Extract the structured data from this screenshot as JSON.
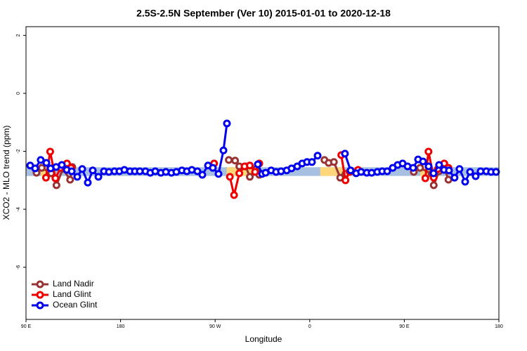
{
  "chart_data": {
    "type": "line",
    "title": "2.5S-2.5N September (Ver 10)   2015-01-01 to 2020-12-18",
    "x_label": "Longitude",
    "y_label": "XCO2 - MLO trend (ppm)",
    "xlim": [
      90,
      540
    ],
    "ylim": [
      -7.8,
      2.3
    ],
    "xticks": [
      {
        "value": 90,
        "label": "90 E"
      },
      180,
      {
        "value": 270,
        "label": "90 W"
      },
      {
        "value": 360,
        "label": "0"
      },
      {
        "value": 450,
        "label": "90 E"
      },
      {
        "value": 540,
        "label": "180"
      }
    ],
    "yticks": [
      2,
      0,
      -2,
      -4,
      -6
    ],
    "legend": "bottom-left",
    "band": {
      "ylim": [
        -2.85,
        -2.55
      ],
      "color": "#a7bfe0",
      "land_color": "#ffd77a",
      "land_segments": [
        [
          104,
          115
        ],
        [
          281,
          306
        ],
        [
          370,
          393
        ],
        [
          465,
          475
        ]
      ]
    },
    "series": [
      {
        "name": "Land Nadir",
        "color": "#993333",
        "x": [
          100,
          105,
          114,
          119,
          125,
          132,
          134,
          null,
          283,
          289,
          293,
          299,
          303,
          309,
          312,
          null,
          374,
          378,
          383,
          389,
          394,
          399,
          null,
          459,
          465,
          476,
          478,
          483,
          488,
          492
        ],
        "values": [
          -2.74,
          -2.57,
          -2.76,
          -3.17,
          -2.61,
          -2.98,
          -2.54,
          null,
          -2.3,
          -2.32,
          -2.52,
          -2.52,
          -2.88,
          -2.61,
          -2.81,
          null,
          -2.3,
          -2.4,
          -2.37,
          -2.91,
          -2.78,
          -2.69,
          null,
          -2.71,
          -2.57,
          -2.78,
          -3.17,
          -2.69,
          -2.57,
          -2.98
        ]
      },
      {
        "name": "Land Glint",
        "color": "#ee0000",
        "x": [
          109,
          113,
          118,
          123,
          129,
          133,
          null,
          269,
          null,
          284,
          288,
          293,
          298,
          303,
          308,
          312,
          null,
          390,
          394,
          398,
          406,
          null,
          470,
          473,
          478,
          482,
          488,
          492
        ],
        "values": [
          -2.91,
          -2.01,
          -2.93,
          -2.57,
          -2.42,
          -2.57,
          null,
          -2.42,
          null,
          -2.88,
          -3.51,
          -2.76,
          -2.52,
          -2.49,
          -2.71,
          -2.42,
          null,
          -2.13,
          -3.0,
          -2.71,
          -2.64,
          null,
          -2.93,
          -2.01,
          -2.91,
          -2.61,
          -2.42,
          -2.57
        ]
      },
      {
        "name": "Ocean Glint",
        "color": "#0000ee",
        "x": [
          94,
          98.7,
          104,
          109.4,
          113.4,
          118.7,
          124.1,
          128.8,
          133.5,
          138.8,
          143.5,
          148.8,
          153.5,
          158.9,
          164.2,
          168.9,
          174.2,
          178.9,
          183.6,
          189,
          193.6,
          198.3,
          203.7,
          208.3,
          213,
          218.4,
          223.1,
          228.4,
          233.1,
          238.4,
          243.1,
          247.8,
          253.1,
          257.8,
          263.2,
          267.8,
          273.2,
          277.9,
          281.2,
          null,
          310.6,
          314.7,
          318,
          323.3,
          328,
          332.7,
          338.1,
          342.7,
          348.1,
          352.8,
          357.4,
          362.1,
          367.5,
          null,
          393.5,
          398.9,
          404.2,
          408.9,
          414.3,
          418.9,
          424.3,
          429,
          433.7,
          439,
          443.7,
          448.4,
          453.1,
          458.4,
          463.1,
          467.8,
          473.1,
          477.8,
          483.1,
          487.8,
          492.5,
          497.8,
          502.5,
          507.9,
          512.6,
          517.9,
          522.6,
          528,
          532.6,
          537.3
        ],
        "values": [
          -2.49,
          -2.59,
          -2.3,
          -2.4,
          -2.59,
          -2.54,
          -2.47,
          -2.64,
          -2.69,
          -2.88,
          -2.61,
          -3.08,
          -2.66,
          -2.88,
          -2.69,
          -2.71,
          -2.69,
          -2.69,
          -2.64,
          -2.69,
          -2.69,
          -2.69,
          -2.69,
          -2.74,
          -2.69,
          -2.74,
          -2.71,
          -2.74,
          -2.71,
          -2.66,
          -2.69,
          -2.64,
          -2.69,
          -2.81,
          -2.49,
          -2.57,
          -2.78,
          -1.97,
          -1.04,
          null,
          -2.45,
          -2.78,
          -2.74,
          -2.66,
          -2.71,
          -2.69,
          -2.66,
          -2.59,
          -2.52,
          -2.42,
          -2.37,
          -2.37,
          -2.15,
          null,
          -2.08,
          -2.66,
          -2.76,
          -2.71,
          -2.74,
          -2.74,
          -2.71,
          -2.69,
          -2.69,
          -2.57,
          -2.47,
          -2.42,
          -2.52,
          -2.57,
          -2.28,
          -2.35,
          -2.52,
          -2.76,
          -2.47,
          -2.64,
          -2.66,
          -2.91,
          -2.61,
          -3.05,
          -2.71,
          -2.86,
          -2.69,
          -2.69,
          -2.71,
          -2.71
        ]
      }
    ]
  }
}
